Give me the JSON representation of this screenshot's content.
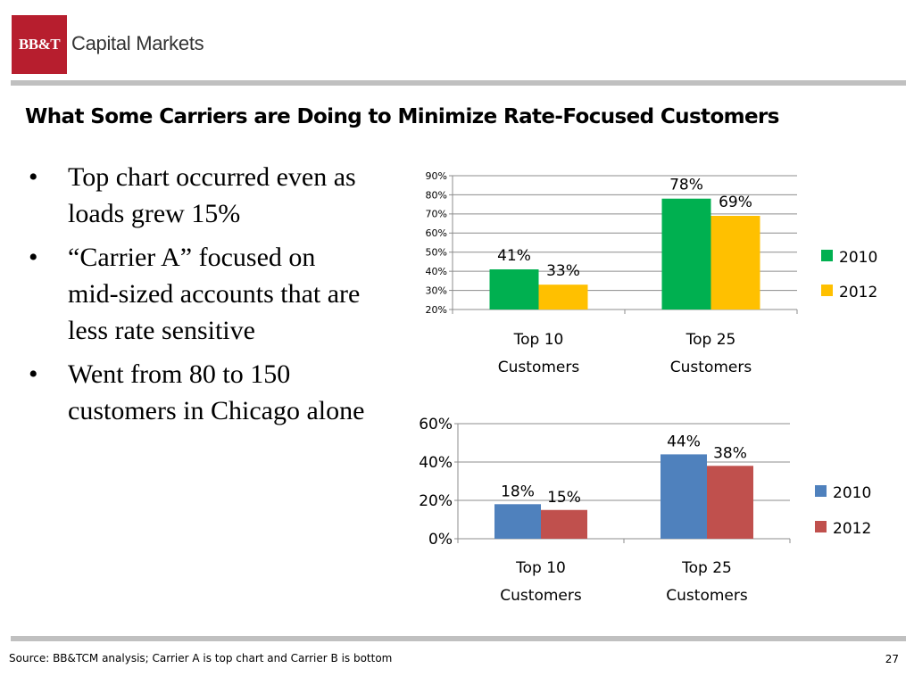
{
  "header": {
    "logo_text": "BB&T",
    "brand_name": "Capital Markets",
    "brand_color": "#b71e2e"
  },
  "title": "What Some Carriers are Doing to Minimize Rate-Focused Customers",
  "bullets": [
    "Top chart occurred even as loads grew 15%",
    "“Carrier A” focused on mid-sized accounts that are less rate sensitive",
    "Went from 80 to 150 customers in Chicago alone"
  ],
  "chart_data": [
    {
      "type": "bar",
      "categories": [
        [
          "Top 10",
          "Customers"
        ],
        [
          "Top 25",
          "Customers"
        ]
      ],
      "series": [
        {
          "name": "2010",
          "values": [
            41,
            78
          ],
          "color": "#00b050"
        },
        {
          "name": "2012",
          "values": [
            33,
            69
          ],
          "color": "#ffc000"
        }
      ],
      "value_labels": [
        [
          "41%",
          "78%"
        ],
        [
          "33%",
          "69%"
        ]
      ],
      "ylim": [
        20,
        90
      ],
      "yticks": [
        20,
        30,
        40,
        50,
        60,
        70,
        80,
        90
      ],
      "ytick_labels": [
        "20%",
        "30%",
        "40%",
        "50%",
        "60%",
        "70%",
        "80%",
        "90%"
      ],
      "grid": true,
      "legend": "right"
    },
    {
      "type": "bar",
      "categories": [
        [
          "Top 10",
          "Customers"
        ],
        [
          "Top 25",
          "Customers"
        ]
      ],
      "series": [
        {
          "name": "2010",
          "values": [
            18,
            44
          ],
          "color": "#4f81bd"
        },
        {
          "name": "2012",
          "values": [
            15,
            38
          ],
          "color": "#c0504d"
        }
      ],
      "value_labels": [
        [
          "18%",
          "44%"
        ],
        [
          "15%",
          "38%"
        ]
      ],
      "ylim": [
        0,
        60
      ],
      "yticks": [
        0,
        20,
        40,
        60
      ],
      "ytick_labels": [
        "0%",
        "20%",
        "40%",
        "60%"
      ],
      "grid": true,
      "legend": "right"
    }
  ],
  "footer": {
    "source": "Source: BB&TCM analysis; Carrier A is top chart and Carrier B is bottom",
    "page": "27"
  }
}
